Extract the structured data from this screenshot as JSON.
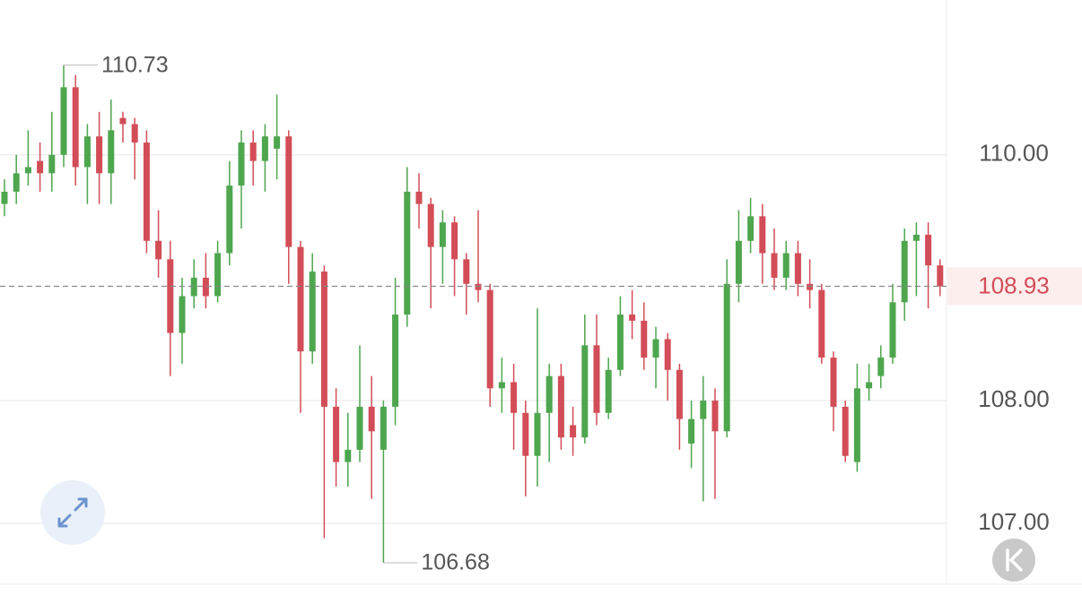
{
  "chart_data": {
    "type": "candlestick",
    "up_color": "#4ea64e",
    "down_color": "#d24d57",
    "ylim": [
      106.52,
      111.26
    ],
    "yticks": [
      {
        "value": 110,
        "label": "110.00"
      },
      {
        "value": 108,
        "label": "108.00"
      },
      {
        "value": 107,
        "label": "107.00"
      }
    ],
    "grid": true,
    "open": [
      109.6,
      109.7,
      109.85,
      109.95,
      109.85,
      110.0,
      110.55,
      109.9,
      110.15,
      109.85,
      110.3,
      110.25,
      110.1,
      109.3,
      109.15,
      108.55,
      108.85,
      109.0,
      108.85,
      109.2,
      109.75,
      110.1,
      109.95,
      110.05,
      110.15,
      109.25,
      108.4,
      109.05,
      107.95,
      107.5,
      107.6,
      107.95,
      107.6,
      107.95,
      108.7,
      109.7,
      109.6,
      109.25,
      109.45,
      109.15,
      108.95,
      108.9,
      108.1,
      108.15,
      107.9,
      107.55,
      107.9,
      108.2,
      107.8,
      107.7,
      108.45,
      107.9,
      108.25,
      108.7,
      108.65,
      108.35,
      108.5,
      108.25,
      107.65,
      107.85,
      108.0,
      107.75,
      108.95,
      109.3,
      109.5,
      109.2,
      109.0,
      109.2,
      108.95,
      108.9,
      108.35,
      107.95,
      107.5,
      108.1,
      108.2,
      108.35,
      108.8,
      109.3,
      109.35,
      109.1
    ],
    "high": [
      109.8,
      110.0,
      110.2,
      110.1,
      110.35,
      110.73,
      110.65,
      110.25,
      110.35,
      110.45,
      110.35,
      110.3,
      110.2,
      109.55,
      109.3,
      109.0,
      109.15,
      109.2,
      109.3,
      109.95,
      110.2,
      110.2,
      110.25,
      110.49,
      110.2,
      109.3,
      109.2,
      109.1,
      108.1,
      107.9,
      108.45,
      108.2,
      108.0,
      109.0,
      109.9,
      109.85,
      109.65,
      109.55,
      109.5,
      109.2,
      109.55,
      108.95,
      108.35,
      108.3,
      108.0,
      108.75,
      108.3,
      108.3,
      107.95,
      108.7,
      108.7,
      108.35,
      108.85,
      108.9,
      108.8,
      108.6,
      108.55,
      108.3,
      108.0,
      108.2,
      108.1,
      109.15,
      109.55,
      109.65,
      109.6,
      109.4,
      109.3,
      109.3,
      109.15,
      108.95,
      108.4,
      108.0,
      108.3,
      108.3,
      108.45,
      108.95,
      109.4,
      109.45,
      109.45,
      109.15
    ],
    "low": [
      109.5,
      109.6,
      109.75,
      109.7,
      109.7,
      109.9,
      109.75,
      109.6,
      109.6,
      109.6,
      110.1,
      109.8,
      109.2,
      109.0,
      108.2,
      108.3,
      108.75,
      108.75,
      108.8,
      109.1,
      109.4,
      109.75,
      109.7,
      109.8,
      108.95,
      107.9,
      108.3,
      106.88,
      107.3,
      107.3,
      107.5,
      107.2,
      106.68,
      107.8,
      108.6,
      109.4,
      108.75,
      108.95,
      108.85,
      108.7,
      108.8,
      107.95,
      107.9,
      107.6,
      107.22,
      107.3,
      107.5,
      107.6,
      107.55,
      107.65,
      107.8,
      107.85,
      108.2,
      108.5,
      108.25,
      108.1,
      108.0,
      107.6,
      107.45,
      107.18,
      107.2,
      107.7,
      108.8,
      109.2,
      108.95,
      108.9,
      108.9,
      108.85,
      108.75,
      108.3,
      107.75,
      107.5,
      107.42,
      108.0,
      108.1,
      108.3,
      108.65,
      108.85,
      108.75,
      108.85
    ],
    "close": [
      109.7,
      109.85,
      109.9,
      109.85,
      110.0,
      110.55,
      109.9,
      110.15,
      109.85,
      110.2,
      110.25,
      110.1,
      109.3,
      109.15,
      108.55,
      108.85,
      109.0,
      108.85,
      109.2,
      109.75,
      110.1,
      109.95,
      110.15,
      110.15,
      109.25,
      108.4,
      109.05,
      107.95,
      107.5,
      107.6,
      107.95,
      107.75,
      107.95,
      108.7,
      109.7,
      109.6,
      109.25,
      109.45,
      109.15,
      108.95,
      108.9,
      108.1,
      108.15,
      107.9,
      107.55,
      107.9,
      108.2,
      107.7,
      107.7,
      108.45,
      107.9,
      108.25,
      108.7,
      108.65,
      108.35,
      108.5,
      108.25,
      107.85,
      107.85,
      108.0,
      107.75,
      108.95,
      109.3,
      109.5,
      109.2,
      109.0,
      109.2,
      108.95,
      108.9,
      108.35,
      107.95,
      107.55,
      108.1,
      108.15,
      108.35,
      108.8,
      109.3,
      109.35,
      109.1,
      108.93
    ],
    "high_marker_index": 5,
    "low_marker_index": 32
  }
}
